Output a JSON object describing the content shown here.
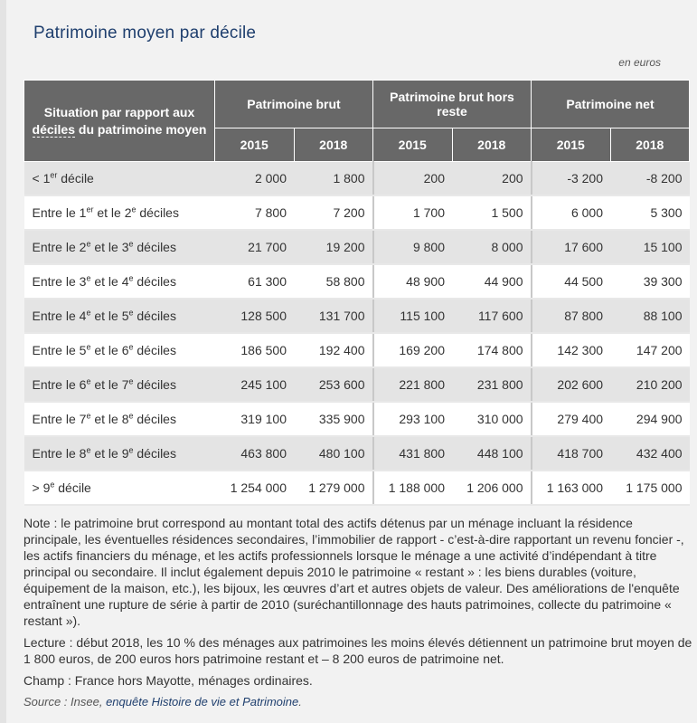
{
  "title": "Patrimoine moyen par décile",
  "unit": "en euros",
  "table": {
    "row_header": {
      "before": "Situation par rapport aux ",
      "term": "déciles",
      "after": " du patrimoine moyen"
    },
    "groups": [
      "Patrimoine brut",
      "Patrimoine brut hors reste",
      "Patrimoine net"
    ],
    "years": [
      "2015",
      "2018",
      "2015",
      "2018",
      "2015",
      "2018"
    ],
    "rows": [
      {
        "pre": "< 1",
        "sup1": "er",
        "mid": " décile",
        "sup2": "",
        "post": "",
        "values": [
          "2 000",
          "1 800",
          "200",
          "200",
          "-3 200",
          "-8 200"
        ]
      },
      {
        "pre": "Entre le 1",
        "sup1": "er",
        "mid": " et le 2",
        "sup2": "e",
        "post": " déciles",
        "values": [
          "7 800",
          "7 200",
          "1 700",
          "1 500",
          "6 000",
          "5 300"
        ]
      },
      {
        "pre": "Entre le 2",
        "sup1": "e",
        "mid": " et le 3",
        "sup2": "e",
        "post": " déciles",
        "values": [
          "21 700",
          "19 200",
          "9 800",
          "8 000",
          "17 600",
          "15 100"
        ]
      },
      {
        "pre": "Entre le 3",
        "sup1": "e",
        "mid": " et le 4",
        "sup2": "e",
        "post": " déciles",
        "values": [
          "61 300",
          "58 800",
          "48 900",
          "44 900",
          "44 500",
          "39 300"
        ]
      },
      {
        "pre": "Entre le 4",
        "sup1": "e",
        "mid": " et le 5",
        "sup2": "e",
        "post": " déciles",
        "values": [
          "128 500",
          "131 700",
          "115 100",
          "117 600",
          "87 800",
          "88 100"
        ]
      },
      {
        "pre": "Entre le 5",
        "sup1": "e",
        "mid": " et le 6",
        "sup2": "e",
        "post": " déciles",
        "values": [
          "186 500",
          "192 400",
          "169 200",
          "174 800",
          "142 300",
          "147 200"
        ]
      },
      {
        "pre": "Entre le 6",
        "sup1": "e",
        "mid": " et le 7",
        "sup2": "e",
        "post": " déciles",
        "values": [
          "245 100",
          "253 600",
          "221 800",
          "231 800",
          "202 600",
          "210 200"
        ]
      },
      {
        "pre": "Entre le 7",
        "sup1": "e",
        "mid": " et le 8",
        "sup2": "e",
        "post": " déciles",
        "values": [
          "319 100",
          "335 900",
          "293 100",
          "310 000",
          "279 400",
          "294 900"
        ]
      },
      {
        "pre": "Entre le 8",
        "sup1": "e",
        "mid": " et le 9",
        "sup2": "e",
        "post": " déciles",
        "values": [
          "463 800",
          "480 100",
          "431 800",
          "448 100",
          "418 700",
          "432 400"
        ]
      },
      {
        "pre": "> 9",
        "sup1": "e",
        "mid": " décile",
        "sup2": "",
        "post": "",
        "values": [
          "1 254 000",
          "1 279 000",
          "1 188 000",
          "1 206 000",
          "1 163 000",
          "1 175 000"
        ]
      }
    ]
  },
  "notes": {
    "note": "Note : le patrimoine brut correspond au montant total des actifs détenus par un ménage incluant la résidence principale, les éventuelles résidences secondaires, l’immobilier de rapport - c’est-à-dire rapportant un revenu foncier -, les actifs financiers du ménage, et les actifs professionnels lorsque le ménage a une activité d’indépendant à titre principal ou secondaire. Il inclut également depuis 2010 le patrimoine « restant » : les biens durables (voiture, équipement de la maison, etc.), les bijoux, les œuvres d’art et autres objets de valeur. Des améliorations de l'enquête entraînent une rupture de série à partir de 2010 (suréchantillonnage des hauts patrimoines, collecte du patrimoine « restant »).",
    "lecture": "Lecture : début 2018, les 10 % des ménages aux patrimoines les moins élevés détiennent un patrimoine brut moyen de 1 800  euros, de 200 euros hors patrimoine restant et – 8 200 euros de patrimoine net.",
    "champ": "Champ : France hors Mayotte, ménages ordinaires.",
    "source_prefix": "Source : Insee, ",
    "source_link": "enquête Histoire de vie et Patrimoine",
    "source_suffix": "."
  }
}
